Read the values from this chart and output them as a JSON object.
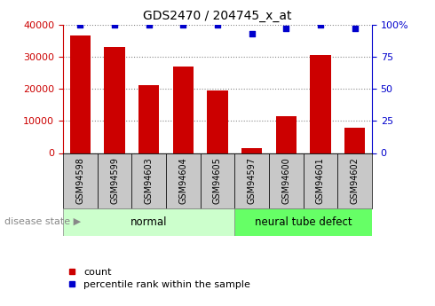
{
  "title": "GDS2470 / 204745_x_at",
  "categories": [
    "GSM94598",
    "GSM94599",
    "GSM94603",
    "GSM94604",
    "GSM94605",
    "GSM94597",
    "GSM94600",
    "GSM94601",
    "GSM94602"
  ],
  "counts": [
    36500,
    33000,
    21000,
    27000,
    19500,
    1500,
    11500,
    30500,
    8000
  ],
  "percentile_ranks": [
    100,
    100,
    100,
    100,
    100,
    93,
    97,
    100,
    97
  ],
  "bar_color": "#cc0000",
  "dot_color": "#0000cc",
  "left_axis_color": "#cc0000",
  "right_axis_color": "#0000cc",
  "ylim_left": [
    0,
    40000
  ],
  "ylim_right": [
    0,
    100
  ],
  "left_ticks": [
    0,
    10000,
    20000,
    30000,
    40000
  ],
  "right_ticks": [
    0,
    25,
    50,
    75,
    100
  ],
  "right_tick_labels": [
    "0",
    "25",
    "50",
    "75",
    "100%"
  ],
  "group_normal_indices": [
    0,
    1,
    2,
    3,
    4
  ],
  "group_neural_indices": [
    5,
    6,
    7,
    8
  ],
  "group_normal_label": "normal",
  "group_neural_label": "neural tube defect",
  "disease_state_label": "disease state",
  "legend_count_label": "count",
  "legend_percentile_label": "percentile rank within the sample",
  "normal_bg": "#ccffcc",
  "neural_bg": "#66ff66",
  "label_box_bg": "#c8c8c8",
  "bar_width": 0.6,
  "figsize": [
    4.9,
    3.45
  ],
  "dpi": 100
}
